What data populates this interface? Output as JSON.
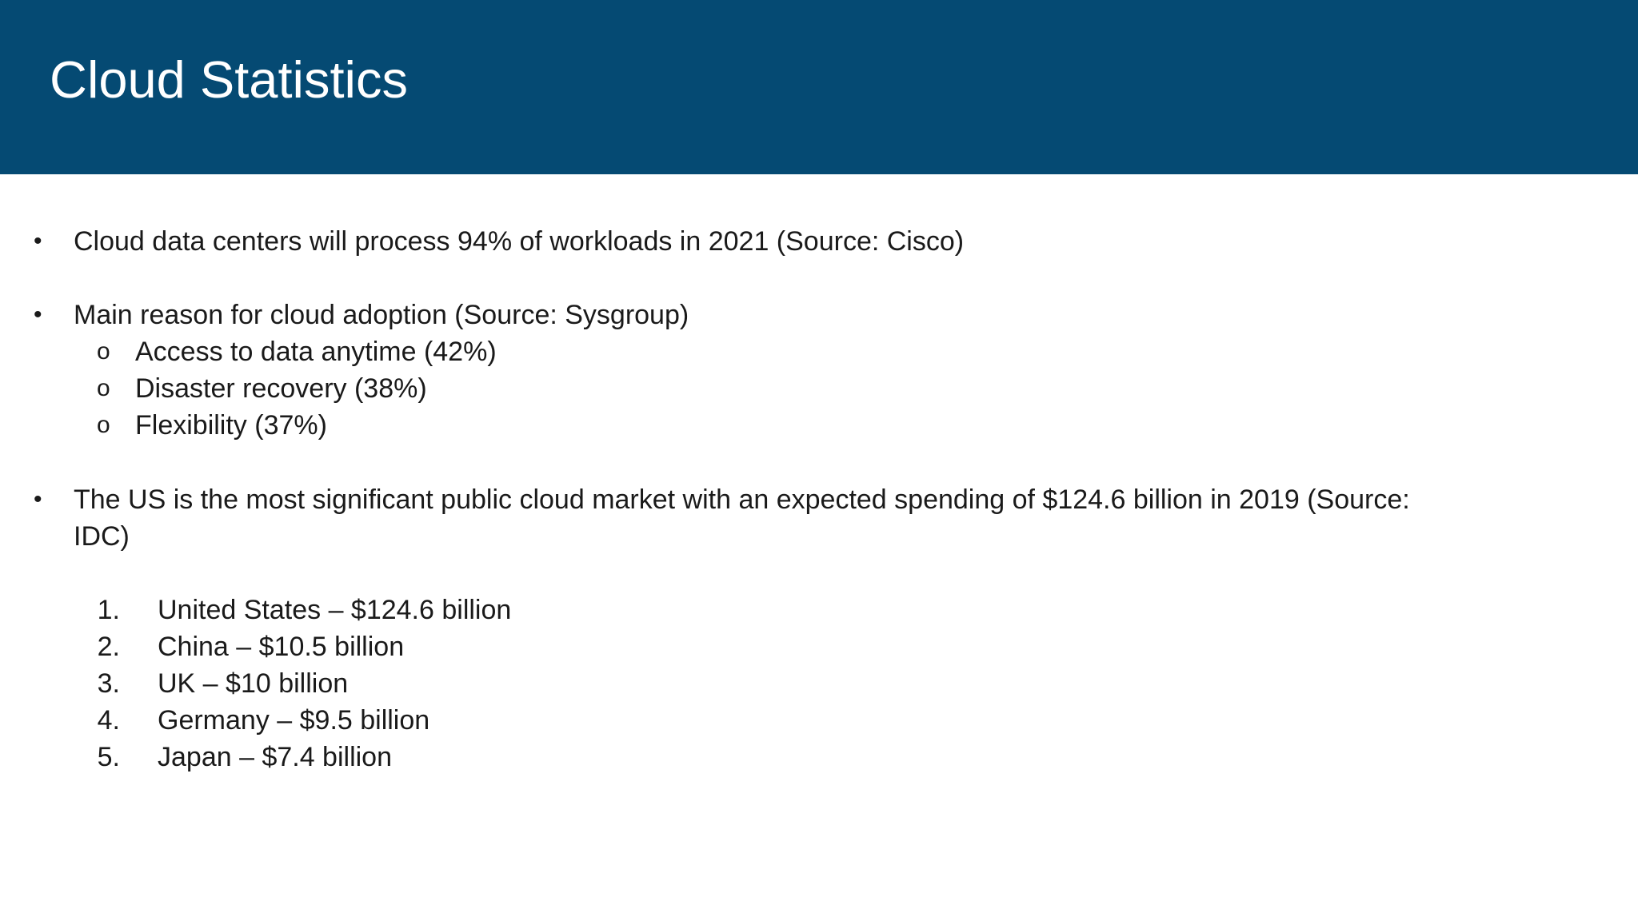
{
  "slide": {
    "title": "Cloud Statistics",
    "bullets": [
      {
        "text": "Cloud data centers will process 94% of workloads in 2021 (Source: Cisco)"
      },
      {
        "text": "Main reason for cloud adoption (Source: Sysgroup)",
        "sub_items": [
          "Access to data anytime (42%)",
          "Disaster recovery (38%)",
          "Flexibility (37%)"
        ]
      },
      {
        "text_line1": "The US is the most significant public cloud market with an expected spending of $124.6 billion in 2019 (Source:",
        "text_line2": "IDC)",
        "ranked_items": [
          {
            "number": "1.",
            "text": "United States – $124.6 billion"
          },
          {
            "number": "2.",
            "text": "China – $10.5 billion"
          },
          {
            "number": "3.",
            "text": "UK – $10 billion"
          },
          {
            "number": "4.",
            "text": "Germany – $9.5 billion"
          },
          {
            "number": "5.",
            "text": "Japan – $7.4 billion"
          }
        ]
      }
    ],
    "bullet_marker": "•",
    "sub_marker": "o",
    "colors": {
      "header_background": "#054a73",
      "header_text": "#ffffff",
      "body_text": "#1a1a1a",
      "background": "#ffffff"
    }
  }
}
